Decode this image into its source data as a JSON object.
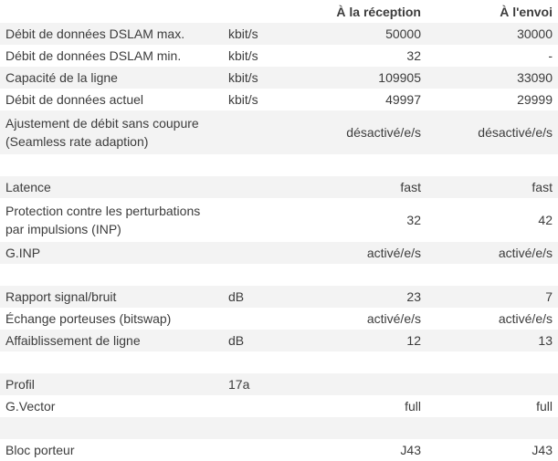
{
  "headers": {
    "label": "",
    "unit": "",
    "rx": "À la réception",
    "tx": "À l'envoi"
  },
  "rows": [
    {
      "label": "Débit de données DSLAM max.",
      "unit": "kbit/s",
      "rx": "50000",
      "tx": "30000"
    },
    {
      "label": "Débit de données DSLAM min.",
      "unit": "kbit/s",
      "rx": "32",
      "tx": "-"
    },
    {
      "label": "Capacité de la ligne",
      "unit": "kbit/s",
      "rx": "109905",
      "tx": "33090"
    },
    {
      "label": "Débit de données actuel",
      "unit": "kbit/s",
      "rx": "49997",
      "tx": "29999"
    },
    {
      "label": "Ajustement de débit sans coupure (Seamless rate adaption)",
      "unit": "",
      "rx": "désactivé/e/s",
      "tx": "désactivé/e/s"
    },
    {
      "label": "",
      "unit": "",
      "rx": "",
      "tx": ""
    },
    {
      "label": "Latence",
      "unit": "",
      "rx": "fast",
      "tx": "fast"
    },
    {
      "label": "Protection contre les perturbations par impulsions (INP)",
      "unit": "",
      "rx": "32",
      "tx": "42"
    },
    {
      "label": "G.INP",
      "unit": "",
      "rx": "activé/e/s",
      "tx": "activé/e/s"
    },
    {
      "label": "",
      "unit": "",
      "rx": "",
      "tx": ""
    },
    {
      "label": "Rapport signal/bruit",
      "unit": "dB",
      "rx": "23",
      "tx": "7"
    },
    {
      "label": "Échange porteuses (bitswap)",
      "unit": "",
      "rx": "activé/e/s",
      "tx": "activé/e/s"
    },
    {
      "label": "Affaiblissement de ligne",
      "unit": "dB",
      "rx": "12",
      "tx": "13"
    },
    {
      "label": "",
      "unit": "",
      "rx": "",
      "tx": ""
    },
    {
      "label": "Profil",
      "unit": "17a",
      "rx": "",
      "tx": ""
    },
    {
      "label": "G.Vector",
      "unit": "",
      "rx": "full",
      "tx": "full"
    },
    {
      "label": "",
      "unit": "",
      "rx": "",
      "tx": ""
    },
    {
      "label": "Bloc porteur",
      "unit": "",
      "rx": "J43",
      "tx": "J43"
    }
  ]
}
